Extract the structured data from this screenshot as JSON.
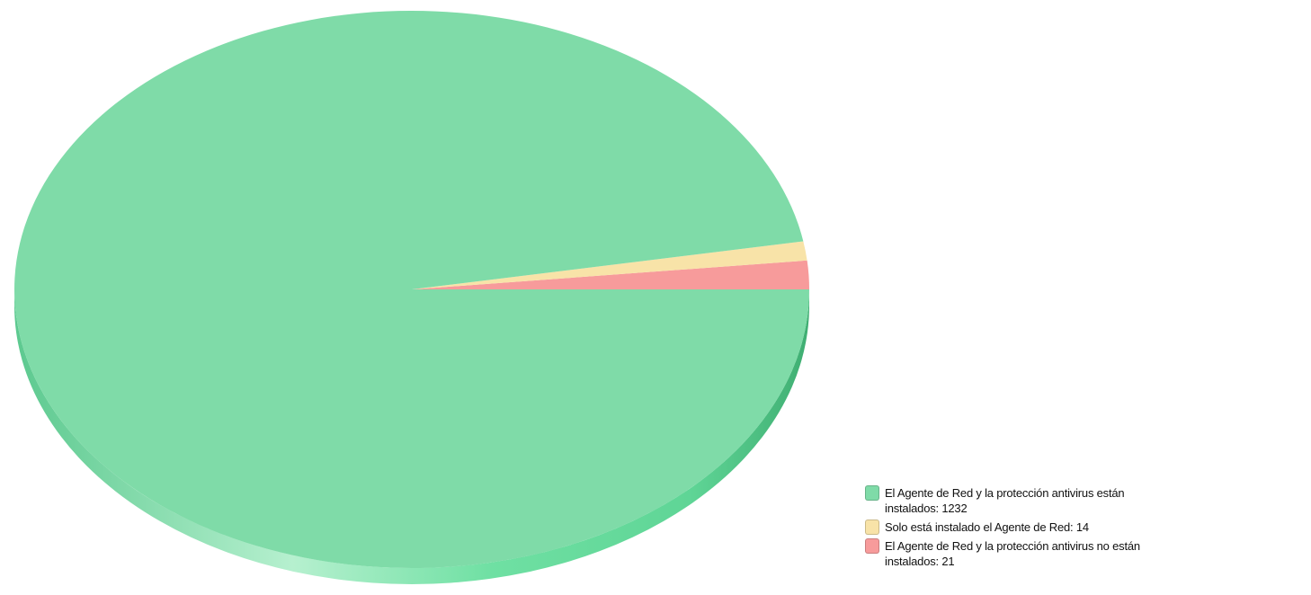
{
  "chart_data": {
    "type": "pie",
    "title": "",
    "style": "3d",
    "legend_position": "bottom-right",
    "slices": [
      {
        "label": "El Agente de Red y la protección antivirus están instalados",
        "value": 1232,
        "color": "#7fdba8"
      },
      {
        "label": "Solo está instalado el Agente de Red",
        "value": 14,
        "color": "#f8e3a8"
      },
      {
        "label": "El Agente de Red y la protección antivirus no están instalados",
        "value": 21,
        "color": "#f79b9b"
      }
    ]
  },
  "legend": {
    "items": [
      {
        "text": "El Agente de Red y la protección antivirus están instalados: 1232",
        "color": "#7fdba8"
      },
      {
        "text": "Solo está instalado el Agente de Red: 14",
        "color": "#f8e3a8"
      },
      {
        "text": "El Agente de Red y la protección antivirus no están instalados: 21",
        "color": "#f79b9b"
      }
    ]
  }
}
